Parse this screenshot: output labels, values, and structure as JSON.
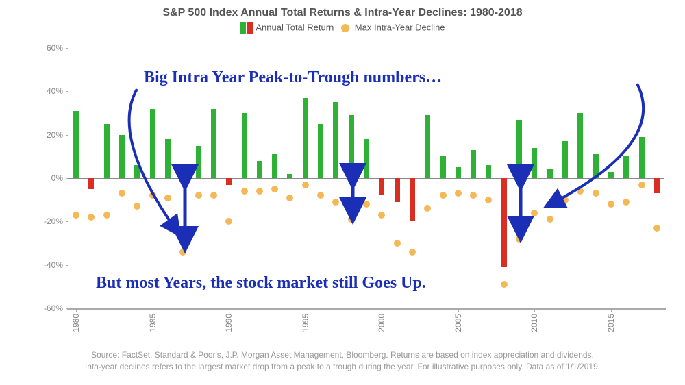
{
  "title": "S&P 500 Index Annual Total Returns & Intra-Year Declines: 1980-2018",
  "legend": {
    "bars_label": "Annual Total Return",
    "dots_label": "Max Intra-Year Decline",
    "bar_green": "#2eb135",
    "bar_red": "#d92e21",
    "dot_color": "#f5b856"
  },
  "chart": {
    "type": "bar+scatter",
    "background_color": "#ffffff",
    "grid_color": "#cccccc",
    "axis_color": "#aaaaaa",
    "ylim": [
      -60,
      60
    ],
    "ytick_step": 20,
    "ytick_labels": [
      "-60%",
      "-40%",
      "-20%",
      "0%",
      "20%",
      "40%",
      "60%"
    ],
    "x_tick_years": [
      1980,
      1985,
      1990,
      1995,
      2000,
      2005,
      2010,
      2015
    ],
    "years_start": 1980,
    "years_end": 2018,
    "annual_return": [
      31,
      -5,
      25,
      20,
      6,
      32,
      18,
      6,
      15,
      32,
      -3,
      30,
      8,
      11,
      2,
      37,
      25,
      35,
      29,
      18,
      -8,
      -11,
      -20,
      29,
      10,
      5,
      13,
      6,
      -41,
      27,
      14,
      4,
      17,
      30,
      11,
      3,
      10,
      19,
      -7
    ],
    "intra_year_decline": [
      -17,
      -18,
      -17,
      -7,
      -13,
      -8,
      -9,
      -34,
      -8,
      -8,
      -20,
      -6,
      -6,
      -5,
      -9,
      -3,
      -8,
      -11,
      -19,
      -12,
      -17,
      -30,
      -34,
      -14,
      -8,
      -7,
      -8,
      -10,
      -49,
      -28,
      -16,
      -19,
      -10,
      -6,
      -7,
      -12,
      -11,
      -3,
      -23
    ]
  },
  "annotations": {
    "top_text": "Big Intra Year Peak-to-Trough numbers…",
    "bottom_text": "But most Years, the stock market  still Goes Up.",
    "color": "#1a2fb5",
    "top_fontsize": 24,
    "bottom_fontsize": 24
  },
  "footnote_line1": "Source: FactSet, Standard & Poor's, J.P. Morgan Asset Management, Bloomberg. Returns are based on index appreciation and dividends.",
  "footnote_line2": "Inta-year declines refers to the largest market drop from a peak to a trough during the year. For illustrative purposes only. Data as of 1/1/2019."
}
